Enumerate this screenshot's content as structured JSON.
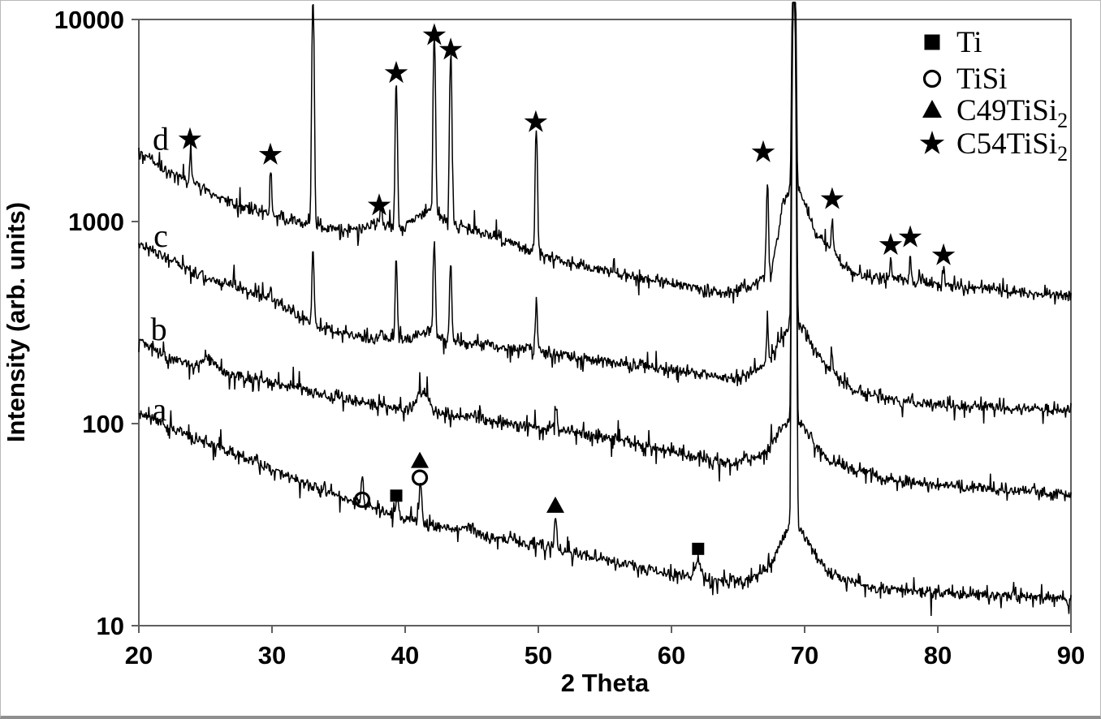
{
  "figure": {
    "xlabel": "2 Theta",
    "ylabel": "Intensity (arb. units)",
    "x_tick_labels": [
      "20",
      "30",
      "40",
      "50",
      "60",
      "70",
      "80",
      "90"
    ],
    "y_tick_labels": [
      "10",
      "100",
      "1000",
      "10000"
    ]
  },
  "legend": [
    {
      "marker": "filled-square-icon",
      "label": "Ti",
      "sub": ""
    },
    {
      "marker": "open-circle-icon",
      "label": "TiSi",
      "sub": ""
    },
    {
      "marker": "filled-triangle-icon",
      "label": "C49TiSi",
      "sub": "2"
    },
    {
      "marker": "filled-star-icon",
      "label": "C54TiSi",
      "sub": "2"
    }
  ],
  "colors": {
    "curve": "#000000",
    "axis": "#5f5f5f",
    "text": "#000000",
    "background": "#ffffff"
  },
  "chart_data": {
    "type": "line",
    "title": "",
    "xlabel": "2 Theta",
    "ylabel": "Intensity (arb. units)",
    "x_range": [
      20,
      90
    ],
    "y_scale": "log",
    "y_range": [
      10,
      10000
    ],
    "x_ticks": [
      20,
      30,
      40,
      50,
      60,
      70,
      80,
      90
    ],
    "y_ticks": [
      10,
      100,
      1000,
      10000
    ],
    "grid": false,
    "legend_position": "top-right",
    "series": [
      {
        "name": "a",
        "curve_label": "a",
        "label_at": [
          21.55,
          117
        ],
        "seed": 11,
        "noise_sigma": 0.015,
        "baseline": [
          [
            20,
            115
          ],
          [
            22,
            98
          ],
          [
            24,
            85
          ],
          [
            26,
            76
          ],
          [
            28,
            67
          ],
          [
            30,
            60
          ],
          [
            32,
            52
          ],
          [
            34,
            46
          ],
          [
            36,
            42
          ],
          [
            38,
            37
          ],
          [
            40,
            34
          ],
          [
            42,
            31
          ],
          [
            44,
            29.5
          ],
          [
            46,
            28
          ],
          [
            48,
            26.5
          ],
          [
            50,
            25
          ],
          [
            52,
            23.5
          ],
          [
            54,
            22
          ],
          [
            56,
            20.5
          ],
          [
            58,
            19
          ],
          [
            60,
            18
          ],
          [
            62,
            17.2
          ],
          [
            64,
            16.5
          ],
          [
            66,
            17
          ],
          [
            67.5,
            20
          ],
          [
            68.5,
            28
          ],
          [
            69.2,
            33
          ],
          [
            70,
            28
          ],
          [
            71,
            21
          ],
          [
            72,
            18
          ],
          [
            74,
            16
          ],
          [
            77,
            15
          ],
          [
            80,
            14.5
          ],
          [
            85,
            14
          ],
          [
            90,
            13.5
          ]
        ],
        "peaks": [
          [
            36.77,
            0.32,
            0.12
          ],
          [
            39.4,
            0.28,
            0.12
          ],
          [
            41.15,
            0.58,
            0.13
          ],
          [
            44.8,
            0.08,
            0.5
          ],
          [
            51.3,
            0.48,
            0.12
          ],
          [
            62.0,
            0.24,
            0.3
          ],
          [
            69.2,
            650,
            0.11
          ]
        ]
      },
      {
        "name": "b",
        "curve_label": "b",
        "label_at": [
          21.5,
          292
        ],
        "seed": 23,
        "noise_sigma": 0.015,
        "baseline": [
          [
            20,
            260
          ],
          [
            22,
            215
          ],
          [
            24,
            190
          ],
          [
            26,
            175
          ],
          [
            28,
            166
          ],
          [
            30,
            158
          ],
          [
            33,
            143
          ],
          [
            36,
            130
          ],
          [
            39,
            120
          ],
          [
            42,
            113
          ],
          [
            44,
            108
          ],
          [
            47,
            101
          ],
          [
            49,
            97
          ],
          [
            51,
            94
          ],
          [
            53,
            89
          ],
          [
            55,
            85
          ],
          [
            57,
            80
          ],
          [
            60,
            73
          ],
          [
            63,
            66
          ],
          [
            65,
            63
          ],
          [
            67,
            70
          ],
          [
            68.3,
            95
          ],
          [
            69.2,
            110
          ],
          [
            70,
            95
          ],
          [
            71,
            75
          ],
          [
            72,
            65
          ],
          [
            74,
            58
          ],
          [
            77,
            52
          ],
          [
            80,
            50
          ],
          [
            85,
            47
          ],
          [
            90,
            45
          ]
        ],
        "peaks": [
          [
            25.3,
            0.17,
            0.9
          ],
          [
            41.3,
            0.28,
            0.55
          ],
          [
            45.3,
            0.06,
            0.4
          ],
          [
            51.3,
            0.33,
            0.13
          ],
          [
            69.2,
            320,
            0.11
          ]
        ]
      },
      {
        "name": "c",
        "curve_label": "c",
        "label_at": [
          21.65,
          845
        ],
        "seed": 37,
        "noise_sigma": 0.015,
        "baseline": [
          [
            20,
            780
          ],
          [
            22,
            660
          ],
          [
            24,
            575
          ],
          [
            26,
            505
          ],
          [
            28,
            455
          ],
          [
            30,
            415
          ],
          [
            32,
            340
          ],
          [
            33.5,
            300
          ],
          [
            35,
            280
          ],
          [
            37,
            268
          ],
          [
            39,
            260
          ],
          [
            41,
            262
          ],
          [
            43,
            258
          ],
          [
            45,
            248
          ],
          [
            47,
            240
          ],
          [
            49,
            232
          ],
          [
            51,
            222
          ],
          [
            53,
            212
          ],
          [
            55,
            204
          ],
          [
            57,
            196
          ],
          [
            60,
            185
          ],
          [
            62,
            176
          ],
          [
            64,
            168
          ],
          [
            66,
            175
          ],
          [
            67.5,
            210
          ],
          [
            68.5,
            280
          ],
          [
            69.2,
            320
          ],
          [
            70,
            285
          ],
          [
            71,
            215
          ],
          [
            72,
            180
          ],
          [
            74,
            142
          ],
          [
            77,
            130
          ],
          [
            80,
            125
          ],
          [
            85,
            119
          ],
          [
            90,
            115
          ]
        ],
        "peaks": [
          [
            29.9,
            0.12,
            0.09
          ],
          [
            33.08,
            1.35,
            0.1
          ],
          [
            38.2,
            0.2,
            0.09
          ],
          [
            39.33,
            1.5,
            0.1
          ],
          [
            41.6,
            0.1,
            0.9
          ],
          [
            42.19,
            1.95,
            0.1
          ],
          [
            43.42,
            1.55,
            0.1
          ],
          [
            49.85,
            0.8,
            0.1
          ],
          [
            67.2,
            0.5,
            0.1
          ],
          [
            69.2,
            110,
            0.12
          ],
          [
            72.07,
            0.22,
            0.09
          ]
        ]
      },
      {
        "name": "d",
        "curve_label": "d",
        "label_at": [
          21.65,
          2560
        ],
        "seed": 53,
        "noise_sigma": 0.015,
        "baseline": [
          [
            20,
            2200
          ],
          [
            22,
            1800
          ],
          [
            24,
            1530
          ],
          [
            26,
            1320
          ],
          [
            28,
            1180
          ],
          [
            30,
            1080
          ],
          [
            32,
            990
          ],
          [
            34,
            930
          ],
          [
            36,
            900
          ],
          [
            37.5,
            920
          ],
          [
            39,
            910
          ],
          [
            40.5,
            990
          ],
          [
            41.8,
            1030
          ],
          [
            43,
            1010
          ],
          [
            44.5,
            940
          ],
          [
            46,
            860
          ],
          [
            48,
            780
          ],
          [
            50,
            700
          ],
          [
            52,
            640
          ],
          [
            54,
            590
          ],
          [
            56,
            550
          ],
          [
            58,
            520
          ],
          [
            60,
            495
          ],
          [
            62,
            465
          ],
          [
            64,
            445
          ],
          [
            66,
            480
          ],
          [
            67.5,
            560
          ],
          [
            68.4,
            1250
          ],
          [
            69.2,
            1600
          ],
          [
            70,
            1250
          ],
          [
            70.8,
            880
          ],
          [
            72,
            730
          ],
          [
            73,
            590
          ],
          [
            74,
            545
          ],
          [
            76,
            520
          ],
          [
            78,
            505
          ],
          [
            80,
            490
          ],
          [
            82,
            475
          ],
          [
            85,
            455
          ],
          [
            88,
            440
          ],
          [
            90,
            430
          ]
        ],
        "peaks": [
          [
            23.9,
            0.45,
            0.09
          ],
          [
            29.9,
            0.62,
            0.09
          ],
          [
            33.08,
            12,
            0.1
          ],
          [
            38.0,
            0.09,
            0.7
          ],
          [
            38.2,
            0.32,
            0.09
          ],
          [
            39.33,
            4.2,
            0.1
          ],
          [
            41.6,
            0.1,
            0.9
          ],
          [
            42.19,
            6.8,
            0.1
          ],
          [
            43.42,
            5.9,
            0.1
          ],
          [
            49.85,
            3.1,
            0.1
          ],
          [
            67.2,
            1.9,
            0.1
          ],
          [
            69.2,
            29,
            0.12
          ],
          [
            72.07,
            0.42,
            0.09
          ],
          [
            76.46,
            0.26,
            0.09
          ],
          [
            77.93,
            0.37,
            0.09
          ],
          [
            80.43,
            0.28,
            0.09
          ]
        ]
      }
    ],
    "peak_markers": {
      "star": [
        [
          23.84,
          2550
        ],
        [
          29.88,
          2140
        ],
        [
          38.05,
          1200
        ],
        [
          39.33,
          5430
        ],
        [
          42.19,
          8350
        ],
        [
          43.42,
          7080
        ],
        [
          49.81,
          3100
        ],
        [
          66.89,
          2200
        ],
        [
          72.07,
          1290
        ],
        [
          76.46,
          765
        ],
        [
          77.93,
          835
        ],
        [
          80.43,
          680
        ]
      ],
      "square": [
        [
          39.33,
          44
        ],
        [
          62.0,
          24
        ]
      ],
      "circle": [
        [
          36.77,
          42
        ],
        [
          41.1,
          54
        ]
      ],
      "triangle": [
        [
          41.1,
          65
        ],
        [
          51.28,
          39
        ]
      ]
    }
  }
}
